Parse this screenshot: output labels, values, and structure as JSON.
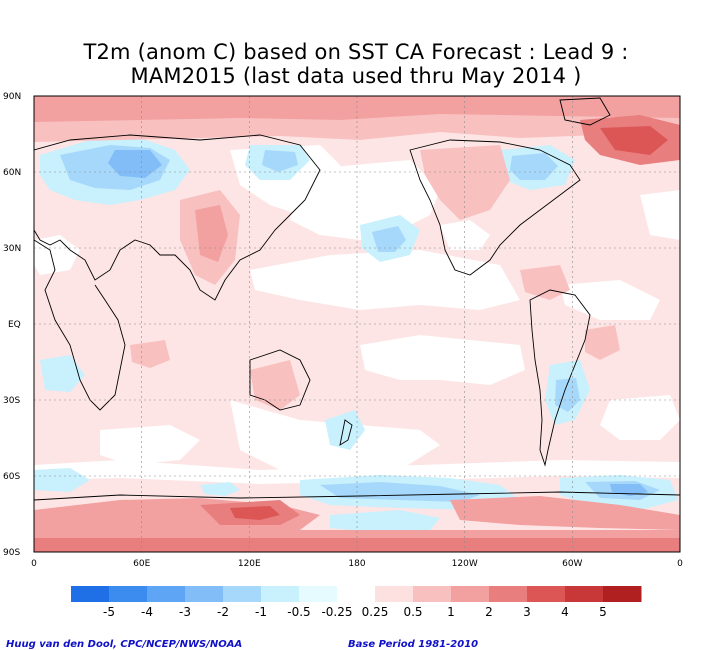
{
  "title": {
    "line1": "T2m (anom C) based on SST CA Forecast : Lead 9 :",
    "line2": "MAM2015 (last data used thru May 2014 )"
  },
  "axes": {
    "lat_labels": [
      "90N",
      "60N",
      "30N",
      "EQ",
      "30S",
      "60S",
      "90S"
    ],
    "lon_labels": [
      "0",
      "60E",
      "120E",
      "180",
      "120W",
      "60W",
      "0"
    ]
  },
  "colorbar": {
    "labels": [
      "-5",
      "-4",
      "-3",
      "-2",
      "-1",
      "-0.5",
      "-0.25",
      "0.25",
      "0.5",
      "1",
      "2",
      "3",
      "4",
      "5"
    ],
    "colors": [
      "#1f6fe6",
      "#3c8cf0",
      "#5fa5f5",
      "#82bdf8",
      "#a6d8fb",
      "#c8f0fd",
      "#e6fbff",
      "#ffffff",
      "#fde0e0",
      "#f9c0c0",
      "#f2a0a0",
      "#e87e7e",
      "#dc5656",
      "#c83838",
      "#b02020"
    ]
  },
  "credits": {
    "left": "Huug van den Dool, CPC/NCEP/NWS/NOAA",
    "right": "Base Period 1981-2010"
  }
}
